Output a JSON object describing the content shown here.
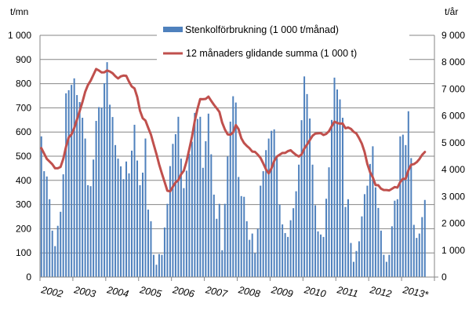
{
  "chart_data": {
    "type": "bar+line",
    "left_axis": {
      "unit_label": "t/mn",
      "range": [
        0,
        1000
      ],
      "ticks": [
        "0",
        "100",
        "200",
        "300",
        "400",
        "500",
        "600",
        "700",
        "800",
        "900",
        "1 000"
      ]
    },
    "right_axis": {
      "unit_label": "t/år",
      "range": [
        0,
        9000
      ],
      "ticks": [
        "0",
        "1 000",
        "2 000",
        "3 000",
        "4 000",
        "5 000",
        "6 000",
        "7 000",
        "8 000",
        "9 000"
      ]
    },
    "x_axis": {
      "tick_labels": [
        "2002",
        "2003",
        "2004",
        "2005",
        "2006",
        "2007",
        "2008",
        "2009",
        "2010",
        "2011",
        "2012",
        "2013*"
      ],
      "unit": "month",
      "start": "2002-01",
      "end": "2013-09"
    },
    "grid": "horizontal",
    "legend_placement": "top",
    "series": [
      {
        "name": "Stenkolförbrukning (1 000 t/månad)",
        "type": "bar",
        "axis": "left",
        "color": "#4f81bd",
        "values": [
          582,
          438,
          416,
          322,
          192,
          128,
          212,
          270,
          425,
          760,
          773,
          795,
          822,
          753,
          724,
          659,
          573,
          380,
          376,
          486,
          646,
          703,
          701,
          802,
          889,
          713,
          662,
          546,
          490,
          458,
          405,
          478,
          429,
          523,
          630,
          482,
          380,
          432,
          573,
          279,
          231,
          92,
          51,
          95,
          92,
          205,
          303,
          459,
          551,
          591,
          663,
          490,
          368,
          440,
          510,
          560,
          679,
          654,
          663,
          452,
          562,
          676,
          508,
          341,
          241,
          303,
          111,
          303,
          499,
          643,
          748,
          722,
          414,
          335,
          332,
          231,
          154,
          180,
          99,
          200,
          378,
          438,
          525,
          573,
          605,
          611,
          492,
          300,
          218,
          182,
          166,
          235,
          285,
          355,
          465,
          649,
          830,
          757,
          656,
          465,
          297,
          189,
          176,
          166,
          324,
          454,
          650,
          825,
          776,
          735,
          659,
          290,
          322,
          141,
          63,
          108,
          148,
          251,
          343,
          378,
          468,
          541,
          371,
          286,
          192,
          92,
          63,
          92,
          210,
          316,
          322,
          582,
          589,
          546,
          686,
          492,
          216,
          162,
          180,
          248,
          319
        ]
      },
      {
        "name": "12 månaders glidande summa (1 000 t)",
        "type": "line",
        "axis": "right",
        "color": "#c0504d",
        "values": [
          4800,
          4600,
          4400,
          4300,
          4200,
          4050,
          4050,
          4100,
          4400,
          4850,
          5200,
          5313,
          5553,
          5868,
          6176,
          6513,
          6894,
          7146,
          7310,
          7526,
          7747,
          7690,
          7618,
          7625,
          7692,
          7652,
          7590,
          7477,
          7394,
          7472,
          7501,
          7493,
          7276,
          7096,
          7025,
          6705,
          6196,
          5915,
          5826,
          5559,
          5300,
          4934,
          4580,
          4197,
          3860,
          3542,
          3215,
          3192,
          3363,
          3522,
          3612,
          3823,
          3960,
          4308,
          4767,
          5232,
          5819,
          6268,
          6628,
          6621,
          6632,
          6717,
          6562,
          6413,
          6286,
          6149,
          5750,
          5493,
          5313,
          5302,
          5387,
          5657,
          5509,
          5168,
          4992,
          4882,
          4795,
          4672,
          4660,
          4557,
          4436,
          4231,
          4008,
          3859,
          4050,
          4326,
          4486,
          4555,
          4619,
          4621,
          4688,
          4723,
          4630,
          4547,
          4487,
          4563,
          4788,
          4934,
          5098,
          5263,
          5342,
          5349,
          5359,
          5290,
          5329,
          5428,
          5613,
          5789,
          5735,
          5713,
          5716,
          5541,
          5566,
          5518,
          5405,
          5347,
          5171,
          4968,
          4661,
          4214,
          3906,
          3712,
          3424,
          3420,
          3290,
          3241,
          3241,
          3225,
          3287,
          3352,
          3331,
          3535,
          3656,
          3661,
          3976,
          4182,
          4206,
          4276,
          4393,
          4549,
          4658
        ]
      }
    ]
  }
}
